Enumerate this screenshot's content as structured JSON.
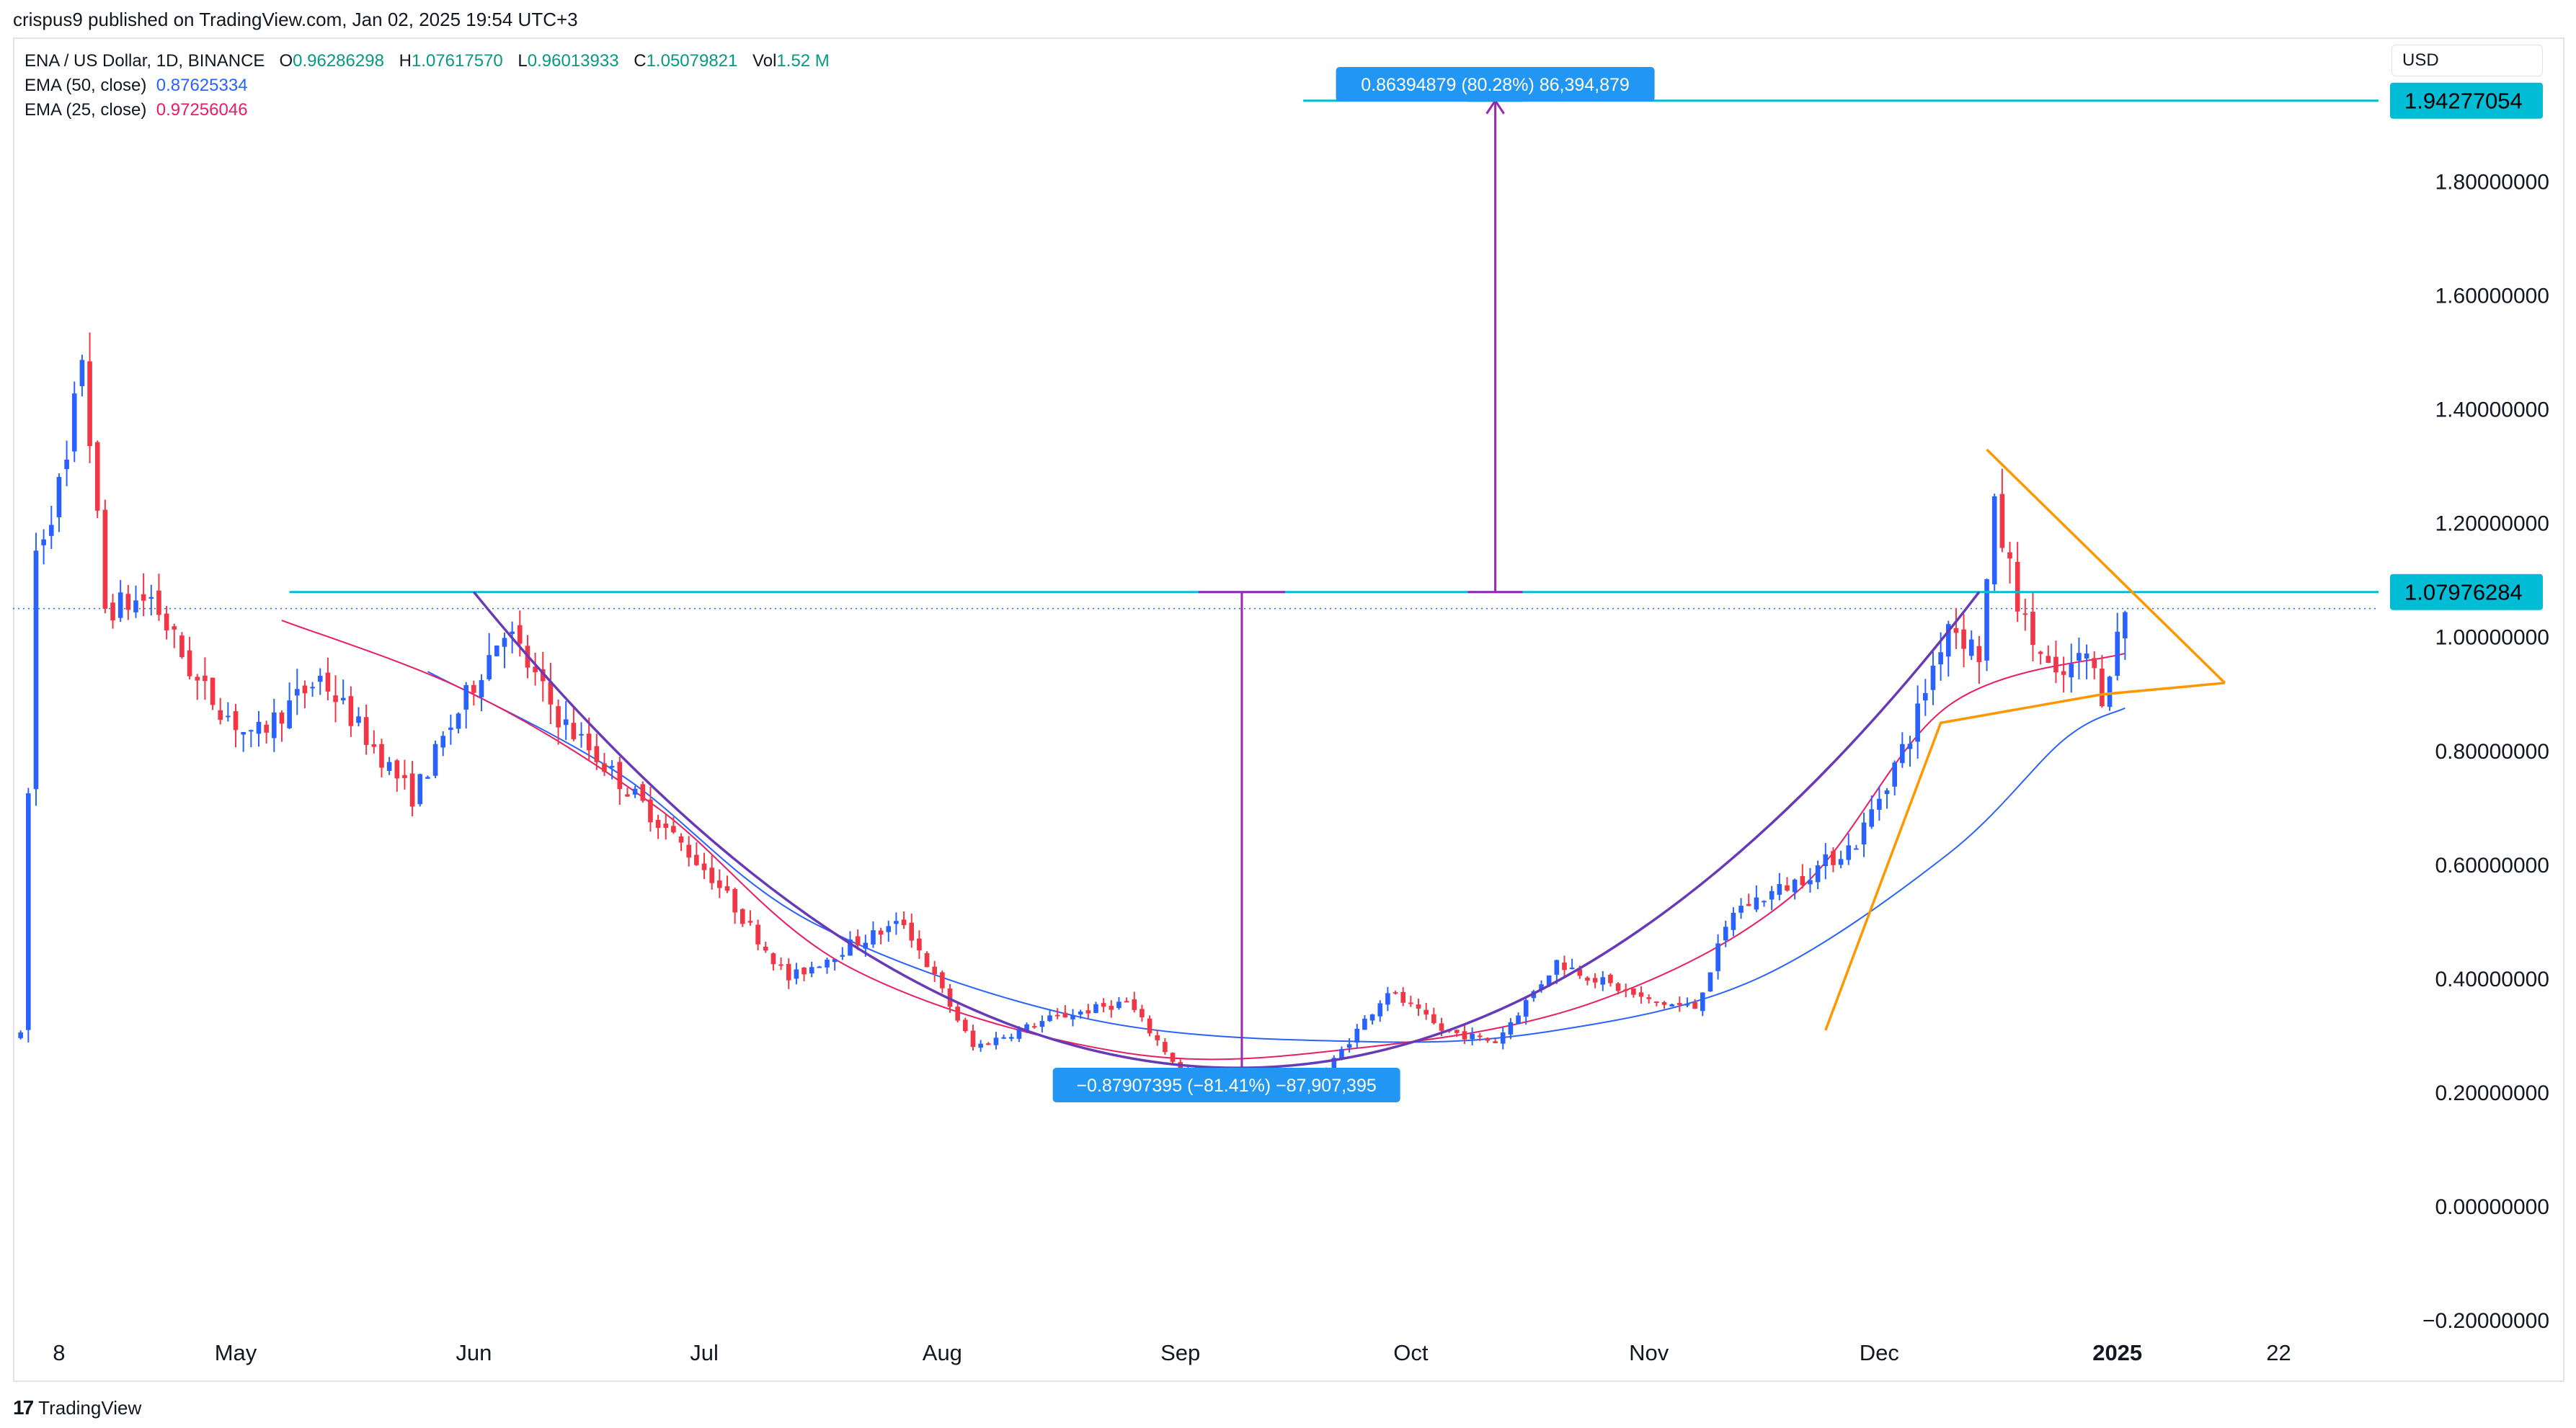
{
  "header": {
    "published_text": "crispus9 published on TradingView.com, Jan 02, 2025 19:54 UTC+3"
  },
  "legend": {
    "symbol": "ENA / US Dollar, 1D, BINANCE",
    "open_label": "O",
    "open": "0.96286298",
    "high_label": "H",
    "high": "1.07617570",
    "low_label": "L",
    "low": "0.96013933",
    "close_label": "C",
    "close": "1.05079821",
    "vol_label": "Vol",
    "vol": "1.52 M",
    "ema50_label": "EMA (50, close)",
    "ema50": "0.87625334",
    "ema25_label": "EMA (25, close)",
    "ema25": "0.97256046"
  },
  "currency": "USD",
  "footer": {
    "brand": "TradingView",
    "logo": "tradingview-logo-icon"
  },
  "colors": {
    "up": "#2962ff",
    "down": "#f23645",
    "ema50": "#2962ff",
    "ema25": "#e91e63",
    "neckline": "#00bcd4",
    "cup": "#673ab7",
    "measure": "#9c27b0",
    "pennant": "#ff9800",
    "label_bg": "#2196f3"
  },
  "chart_data": {
    "type": "candlestick",
    "y_axis": {
      "ticks": [
        "1.80000000",
        "1.60000000",
        "1.40000000",
        "1.20000000",
        "1.00000000",
        "0.80000000",
        "0.60000000",
        "0.40000000",
        "0.20000000",
        "0.00000000",
        "−0.20000000"
      ],
      "tick_values": [
        1.8,
        1.6,
        1.4,
        1.2,
        1.0,
        0.8,
        0.6,
        0.4,
        0.2,
        0.0,
        -0.2
      ],
      "range": [
        -0.3,
        2.05
      ]
    },
    "x_axis": {
      "ticks": [
        "8",
        "May",
        "Jun",
        "Jul",
        "Aug",
        "Sep",
        "Oct",
        "Nov",
        "Dec",
        "2025",
        "22"
      ],
      "tick_dates": [
        "2024-04-08",
        "2024-05-01",
        "2024-06-01",
        "2024-07-01",
        "2024-08-01",
        "2024-09-01",
        "2024-10-01",
        "2024-11-01",
        "2024-12-01",
        "2025-01-01",
        "2025-01-22"
      ],
      "range": [
        "2024-04-02",
        "2025-02-04"
      ]
    },
    "price_labels": [
      {
        "value": 1.94277054,
        "text": "1.94277054"
      },
      {
        "value": 1.07976284,
        "text": "1.07976284"
      }
    ],
    "current_price": 1.05079821,
    "annotations": [
      {
        "text": "0.86394879 (80.28%) 86,394,879",
        "type": "measure-up"
      },
      {
        "text": "−0.87907395 (−81.41%) −87,907,395",
        "type": "measure-down"
      }
    ],
    "neckline_level": 1.07976284,
    "target_level": 1.94277054,
    "cup_bottom": 0.2,
    "series": [
      {
        "name": "EMA (50, close)",
        "sample_points": [
          [
            "2024-05-26",
            0.94
          ],
          [
            "2024-06-20",
            0.76
          ],
          [
            "2024-07-15",
            0.5
          ],
          [
            "2024-08-20",
            0.33
          ],
          [
            "2024-09-25",
            0.29
          ],
          [
            "2024-10-20",
            0.31
          ],
          [
            "2024-11-15",
            0.4
          ],
          [
            "2024-12-10",
            0.62
          ],
          [
            "2024-12-25",
            0.82
          ],
          [
            "2025-01-02",
            0.876
          ]
        ]
      },
      {
        "name": "EMA (25, close)",
        "sample_points": [
          [
            "2024-05-07",
            1.03
          ],
          [
            "2024-06-01",
            0.9
          ],
          [
            "2024-06-25",
            0.7
          ],
          [
            "2024-07-20",
            0.42
          ],
          [
            "2024-08-25",
            0.27
          ],
          [
            "2024-09-25",
            0.28
          ],
          [
            "2024-10-25",
            0.36
          ],
          [
            "2024-11-20",
            0.55
          ],
          [
            "2024-12-10",
            0.88
          ],
          [
            "2025-01-02",
            0.972
          ]
        ]
      }
    ]
  }
}
